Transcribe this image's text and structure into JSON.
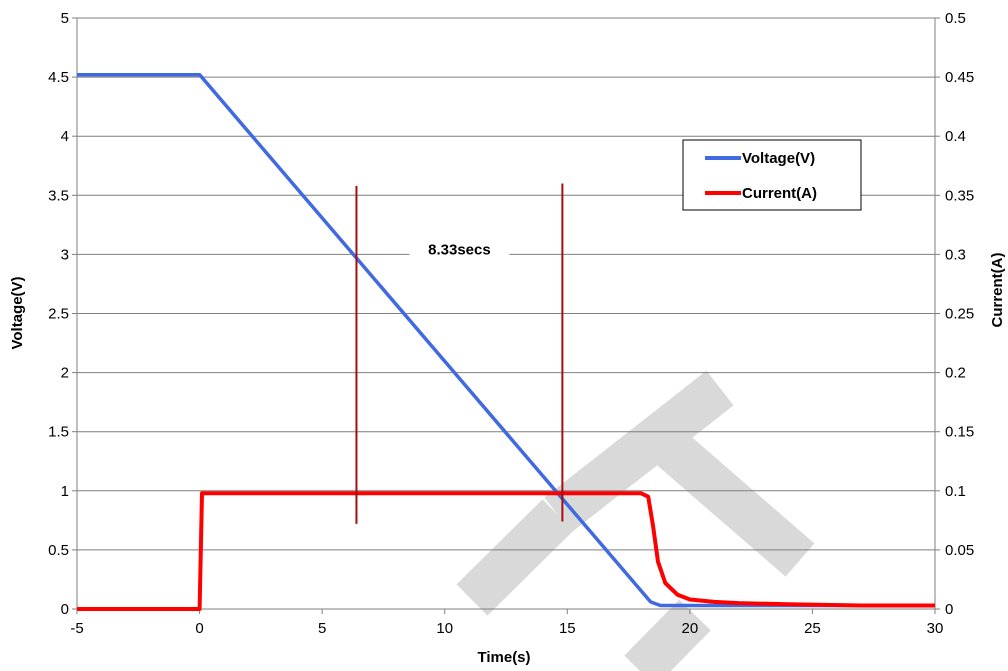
{
  "chart_data": {
    "type": "line",
    "title": "",
    "xlabel": "Time(s)",
    "ylabel": "Voltage(V)",
    "y2label": "Current(A)",
    "xlim": [
      -5,
      30
    ],
    "ylim": [
      0,
      5
    ],
    "y2lim": [
      0,
      0.5
    ],
    "x_ticks": [
      "-5",
      "0",
      "5",
      "10",
      "15",
      "20",
      "25",
      "30"
    ],
    "x_tick_values": [
      -5,
      0,
      5,
      10,
      15,
      20,
      25,
      30
    ],
    "y_ticks": [
      "0",
      "0.5",
      "1",
      "1.5",
      "2",
      "2.5",
      "3",
      "3.5",
      "4",
      "4.5",
      "5"
    ],
    "y_tick_values": [
      0,
      0.5,
      1,
      1.5,
      2,
      2.5,
      3,
      3.5,
      4,
      4.5,
      5
    ],
    "y2_ticks": [
      "0",
      "0.05",
      "0.1",
      "0.15",
      "0.2",
      "0.25",
      "0.3",
      "0.35",
      "0.4",
      "0.45",
      "0.5"
    ],
    "y2_tick_values": [
      0,
      0.05,
      0.1,
      0.15,
      0.2,
      0.25,
      0.3,
      0.35,
      0.4,
      0.45,
      0.5
    ],
    "grid": "horizontal",
    "legend_position": "top-right",
    "series": [
      {
        "name": "Voltage(V)",
        "axis": "left",
        "color": "#4169e1",
        "x": [
          -5,
          0,
          18.4,
          18.8,
          20,
          30
        ],
        "y": [
          4.52,
          4.52,
          0.06,
          0.03,
          0.03,
          0.03
        ]
      },
      {
        "name": "Current(A)",
        "axis": "right",
        "color": "#ff0000",
        "x": [
          -5,
          0,
          0.1,
          18,
          18.3,
          18.5,
          18.7,
          19,
          19.5,
          20,
          21,
          22,
          24,
          27,
          30
        ],
        "y": [
          0,
          0,
          0.098,
          0.098,
          0.095,
          0.07,
          0.04,
          0.022,
          0.012,
          0.008,
          0.006,
          0.005,
          0.004,
          0.003,
          0.003
        ]
      }
    ],
    "markers": [
      {
        "x": 6.4,
        "y_from": 0.72,
        "y_to": 3.58,
        "color": "#a01010"
      },
      {
        "x": 14.8,
        "y_from": 0.74,
        "y_to": 3.6,
        "color": "#a01010"
      }
    ],
    "annotation": {
      "text": "8.33secs",
      "x": 10.6,
      "y": 3.04
    }
  },
  "colors": {
    "watermark": "#d9d9d9",
    "grid": "#7f7f7f",
    "axis": "#7f7f7f"
  }
}
